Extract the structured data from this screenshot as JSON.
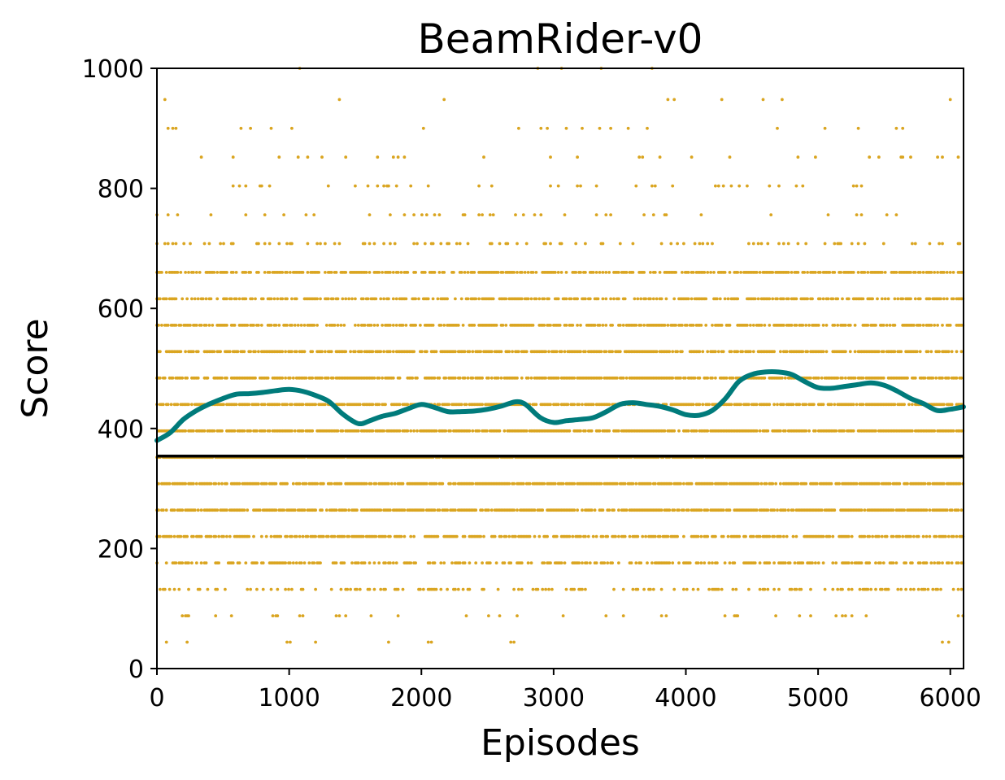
{
  "chart_data": {
    "type": "scatter",
    "title": "BeamRider-v0",
    "xlabel": "Episodes",
    "ylabel": "Score",
    "xlim": [
      0,
      6100
    ],
    "ylim": [
      0,
      1000
    ],
    "x_ticks": [
      0,
      1000,
      2000,
      3000,
      4000,
      5000,
      6000
    ],
    "y_ticks": [
      0,
      200,
      400,
      600,
      800,
      1000
    ],
    "grid": false,
    "legend": "none",
    "colors": {
      "points": "#DAA520",
      "smoothed": "#007B7B",
      "baseline": "#000000"
    },
    "scatter_levels": [
      {
        "score": 352,
        "density": 0.97
      },
      {
        "score": 308,
        "density": 0.82
      },
      {
        "score": 264,
        "density": 0.82
      },
      {
        "score": 396,
        "density": 0.85
      },
      {
        "score": 440,
        "density": 0.85
      },
      {
        "score": 484,
        "density": 0.8
      },
      {
        "score": 220,
        "density": 0.65
      },
      {
        "score": 528,
        "density": 0.72
      },
      {
        "score": 572,
        "density": 0.62
      },
      {
        "score": 616,
        "density": 0.6
      },
      {
        "score": 660,
        "density": 0.65
      },
      {
        "score": 176,
        "density": 0.5
      },
      {
        "score": 132,
        "density": 0.3
      },
      {
        "score": 708,
        "density": 0.18
      },
      {
        "score": 88,
        "density": 0.1
      },
      {
        "score": 756,
        "density": 0.08
      },
      {
        "score": 804,
        "density": 0.05
      },
      {
        "score": 852,
        "density": 0.035
      },
      {
        "score": 900,
        "density": 0.025
      },
      {
        "score": 948,
        "density": 0.018
      },
      {
        "score": 44,
        "density": 0.008
      },
      {
        "score": 1000,
        "density": 0.006
      }
    ],
    "series": [
      {
        "x": [
          0,
          100,
          200,
          300,
          400,
          500,
          600,
          700,
          800,
          900,
          1000,
          1100,
          1200,
          1300,
          1400,
          1500,
          1550,
          1600,
          1700,
          1800,
          1900,
          2000,
          2100,
          2200,
          2300,
          2400,
          2500,
          2600,
          2700,
          2750,
          2800,
          2900,
          3000,
          3100,
          3200,
          3300,
          3400,
          3500,
          3600,
          3700,
          3800,
          3900,
          4000,
          4100,
          4200,
          4300,
          4400,
          4500,
          4600,
          4700,
          4800,
          4900,
          5000,
          5100,
          5200,
          5300,
          5400,
          5500,
          5600,
          5700,
          5800,
          5900,
          6000,
          6100
        ],
        "values": [
          380,
          393,
          415,
          430,
          441,
          450,
          457,
          458,
          460,
          463,
          465,
          462,
          455,
          445,
          425,
          410,
          408,
          412,
          420,
          425,
          433,
          440,
          435,
          428,
          428,
          429,
          432,
          437,
          444,
          444,
          438,
          418,
          410,
          413,
          415,
          418,
          428,
          440,
          443,
          440,
          437,
          431,
          423,
          422,
          430,
          450,
          478,
          490,
          494,
          494,
          490,
          478,
          468,
          467,
          470,
          473,
          476,
          472,
          462,
          450,
          441,
          430,
          432,
          436
        ]
      }
    ],
    "baseline": 354
  }
}
